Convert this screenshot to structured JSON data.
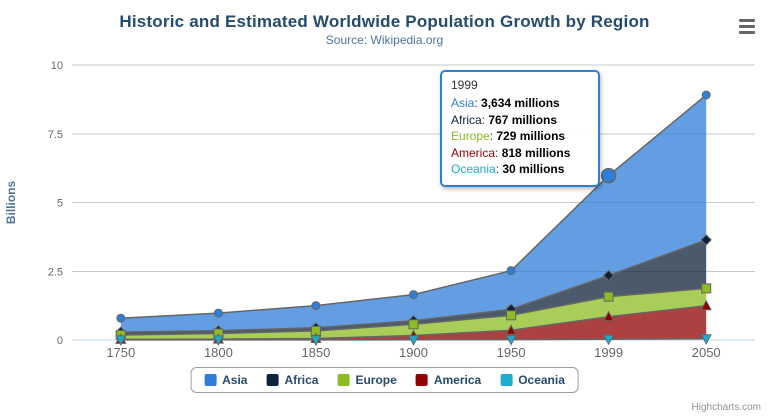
{
  "header": {
    "title": "Historic and Estimated Worldwide Population Growth by Region",
    "subtitle": "Source: Wikipedia.org"
  },
  "icons": {
    "export_menu": "hamburger-icon"
  },
  "chart_data": {
    "type": "area",
    "stacking": "normal",
    "title": "Historic and Estimated Worldwide Population Growth by Region",
    "subtitle": "Source: Wikipedia.org",
    "categories": [
      "1750",
      "1800",
      "1850",
      "1900",
      "1950",
      "1999",
      "2050"
    ],
    "series": [
      {
        "name": "Asia",
        "color": "#2f7ed8",
        "marker": "circle",
        "values": [
          502,
          635,
          809,
          947,
          1402,
          3634,
          5268
        ]
      },
      {
        "name": "Africa",
        "color": "#0d233a",
        "marker": "diamond",
        "values": [
          106,
          107,
          111,
          133,
          221,
          767,
          1766
        ]
      },
      {
        "name": "Europe",
        "color": "#8bbc21",
        "marker": "square",
        "values": [
          163,
          203,
          276,
          408,
          547,
          729,
          628
        ]
      },
      {
        "name": "America",
        "color": "#910000",
        "marker": "triangle",
        "values": [
          18,
          31,
          54,
          156,
          339,
          818,
          1201
        ]
      },
      {
        "name": "Oceania",
        "color": "#1aadce",
        "marker": "triangle-down",
        "values": [
          2,
          2,
          2,
          6,
          13,
          30,
          46
        ]
      }
    ],
    "values_unit": "millions",
    "xlabel": "",
    "ylabel": "Billions",
    "ylim": [
      0,
      10
    ],
    "yticks": [
      0,
      2.5,
      5,
      7.5,
      10
    ],
    "ytick_labels": [
      "0",
      "2.5",
      "5",
      "7.5",
      "10"
    ],
    "grid": true,
    "legend_position": "bottom",
    "line_color": "#666666",
    "grid_color": "#c8c8c8",
    "axis_line_color": "#c0d0e0",
    "axis_label_color": "#666666",
    "hover": {
      "series": "Asia",
      "category": "1999"
    }
  },
  "tooltip": {
    "header": "1999",
    "rows": [
      {
        "name": "Asia",
        "color": "#2f7ed8",
        "value": "3,634 millions"
      },
      {
        "name": "Africa",
        "color": "#0d233a",
        "value": "767 millions"
      },
      {
        "name": "Europe",
        "color": "#8bbc21",
        "value": "729 millions"
      },
      {
        "name": "America",
        "color": "#910000",
        "value": "818 millions"
      },
      {
        "name": "Oceania",
        "color": "#1aadce",
        "value": "30 millions"
      }
    ]
  },
  "credits": "Highcharts.com"
}
